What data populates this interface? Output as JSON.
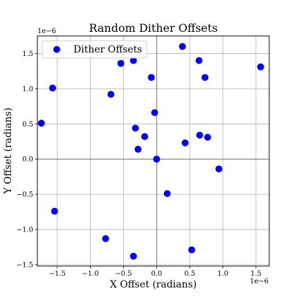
{
  "chart_data": {
    "type": "scatter",
    "title": "Random Dither Offsets",
    "xlabel": "X Offset (radians)",
    "ylabel": "Y Offset (radians)",
    "x_offset_text": "1e−6",
    "y_offset_text": "1e−6",
    "xlim": [
      -1.8,
      1.7
    ],
    "ylim": [
      -1.52,
      1.75
    ],
    "xticks": [
      -1.5,
      -1.0,
      -0.5,
      0.0,
      0.5,
      1.0,
      1.5
    ],
    "xtick_labels": [
      "−1.5",
      "−1.0",
      "−0.5",
      "0.0",
      "0.5",
      "1.0",
      "1.5"
    ],
    "yticks": [
      -1.5,
      -1.0,
      -0.5,
      0.0,
      0.5,
      1.0,
      1.5
    ],
    "ytick_labels": [
      "−1.5",
      "−1.0",
      "−0.5",
      "0.0",
      "0.5",
      "1.0",
      "1.5"
    ],
    "grid": true,
    "zero_lines": true,
    "legend_position": "upper-left",
    "marker_color": "#0000ff",
    "series": [
      {
        "name": "Dither Offsets",
        "x": [
          -1.74,
          -1.57,
          -1.54,
          -0.77,
          -0.69,
          -0.54,
          -0.35,
          -0.35,
          -0.32,
          -0.28,
          -0.18,
          -0.08,
          -0.03,
          0.0,
          0.16,
          0.39,
          0.43,
          0.53,
          0.64,
          0.65,
          0.73,
          0.77,
          0.94,
          1.57
        ],
        "y": [
          0.51,
          1.01,
          -0.74,
          -1.13,
          0.92,
          1.36,
          1.4,
          -1.38,
          0.44,
          0.14,
          0.32,
          1.16,
          0.66,
          0.0,
          -0.49,
          1.6,
          0.23,
          -1.29,
          1.4,
          0.34,
          1.16,
          0.31,
          -0.14,
          1.31
        ]
      }
    ]
  }
}
